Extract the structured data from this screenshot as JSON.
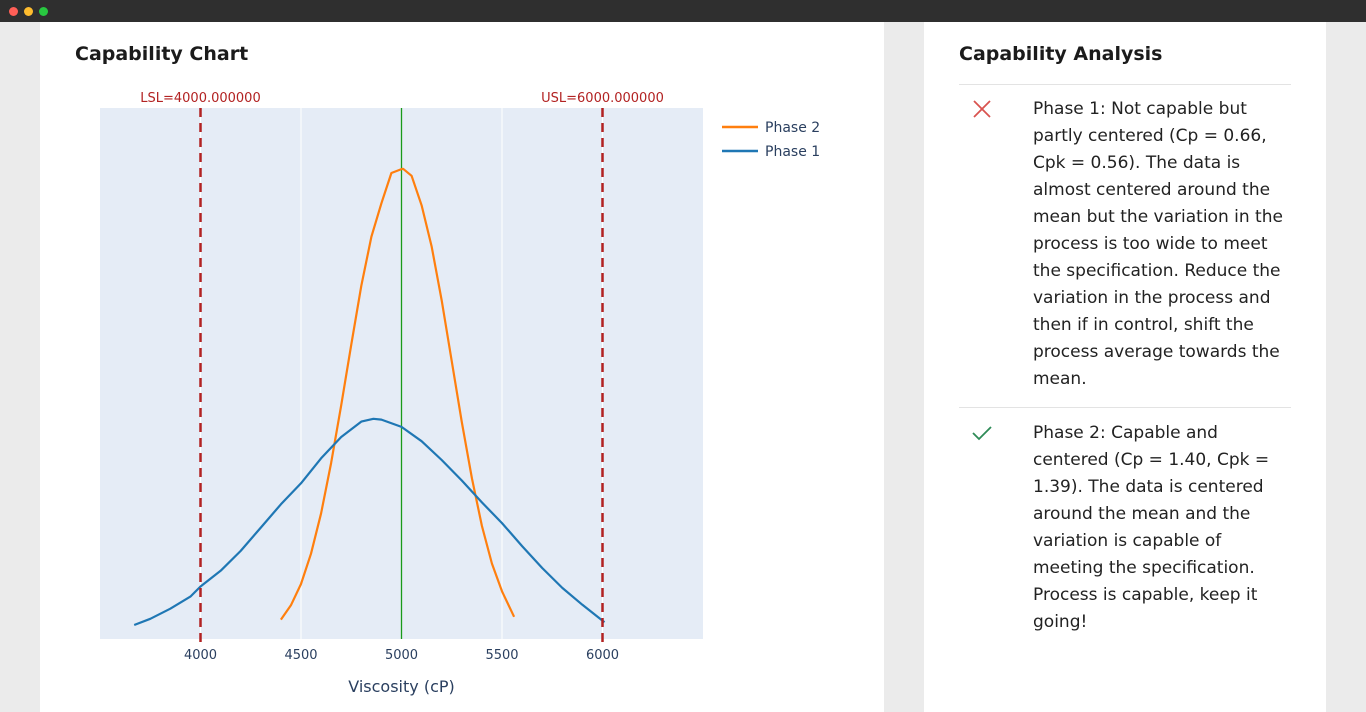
{
  "chart_card": {
    "title": "Capability Chart"
  },
  "analysis_card": {
    "title": "Capability Analysis",
    "items": [
      {
        "status": "fail",
        "icon": "cross-icon",
        "color": "#d9534f",
        "text": "Phase 1: Not capable but partly centered (Cp = 0.66, Cpk = 0.56). The data is almost centered around the mean but the variation in the process is too wide to meet the specification. Reduce the variation in the process and then if in control, shift the process average towards the mean."
      },
      {
        "status": "pass",
        "icon": "check-icon",
        "color": "#2e8b57",
        "text": "Phase 2: Capable and centered (Cp = 1.40, Cpk = 1.39). The data is centered around the mean and the variation is capable of meeting the specification. Process is capable, keep it going!"
      }
    ]
  },
  "chart_data": {
    "type": "line",
    "xlabel": "Viscosity (cP)",
    "xlim": [
      3500,
      6500
    ],
    "xticks": [
      4000,
      4500,
      5000,
      5500,
      6000
    ],
    "legend": "top-right",
    "grid": true,
    "background": "#e5ecf6",
    "lsl": {
      "value": 4000,
      "label": "LSL=4000.000000",
      "color": "#b22222"
    },
    "usl": {
      "value": 6000,
      "label": "USL=6000.000000",
      "color": "#b22222"
    },
    "target": {
      "value": 5000,
      "color": "#1a9a1a"
    },
    "series": [
      {
        "name": "Phase 2",
        "color": "#ff7f0e",
        "mean": 5008,
        "sd": 238,
        "x": [
          4400,
          4450,
          4500,
          4550,
          4600,
          4650,
          4700,
          4750,
          4800,
          4850,
          4900,
          4950,
          5000,
          5008,
          5050,
          5100,
          5150,
          5200,
          5250,
          5300,
          5350,
          5400,
          5450,
          5500,
          5560
        ],
        "y": [
          6.9e-05,
          0.00012,
          0.000196,
          0.000304,
          0.000448,
          0.000627,
          0.000833,
          0.00105,
          0.001259,
          0.001434,
          0.001553,
          0.001661,
          0.001675,
          0.001676,
          0.001651,
          0.001546,
          0.001398,
          0.001207,
          0.000989,
          0.000773,
          0.000573,
          0.000403,
          0.000269,
          0.00017,
          7.9e-05
        ]
      },
      {
        "name": "Phase 1",
        "color": "#1f77b4",
        "mean": 4860,
        "sd": 508,
        "x": [
          3670,
          3750,
          3850,
          3950,
          4000,
          4100,
          4200,
          4300,
          4400,
          4500,
          4600,
          4700,
          4800,
          4860,
          4900,
          5000,
          5100,
          5200,
          5300,
          5400,
          5500,
          5600,
          5700,
          5800,
          5900,
          6010
        ],
        "y": [
          5e-05,
          7.2e-05,
          0.000108,
          0.000151,
          0.000187,
          0.000243,
          0.000314,
          0.000397,
          0.00048,
          0.000555,
          0.000644,
          0.00072,
          0.000775,
          0.000785,
          0.000782,
          0.000756,
          0.000705,
          0.000638,
          0.000565,
          0.000487,
          0.000413,
          0.000331,
          0.000253,
          0.000182,
          0.000122,
          6e-05
        ]
      }
    ]
  }
}
